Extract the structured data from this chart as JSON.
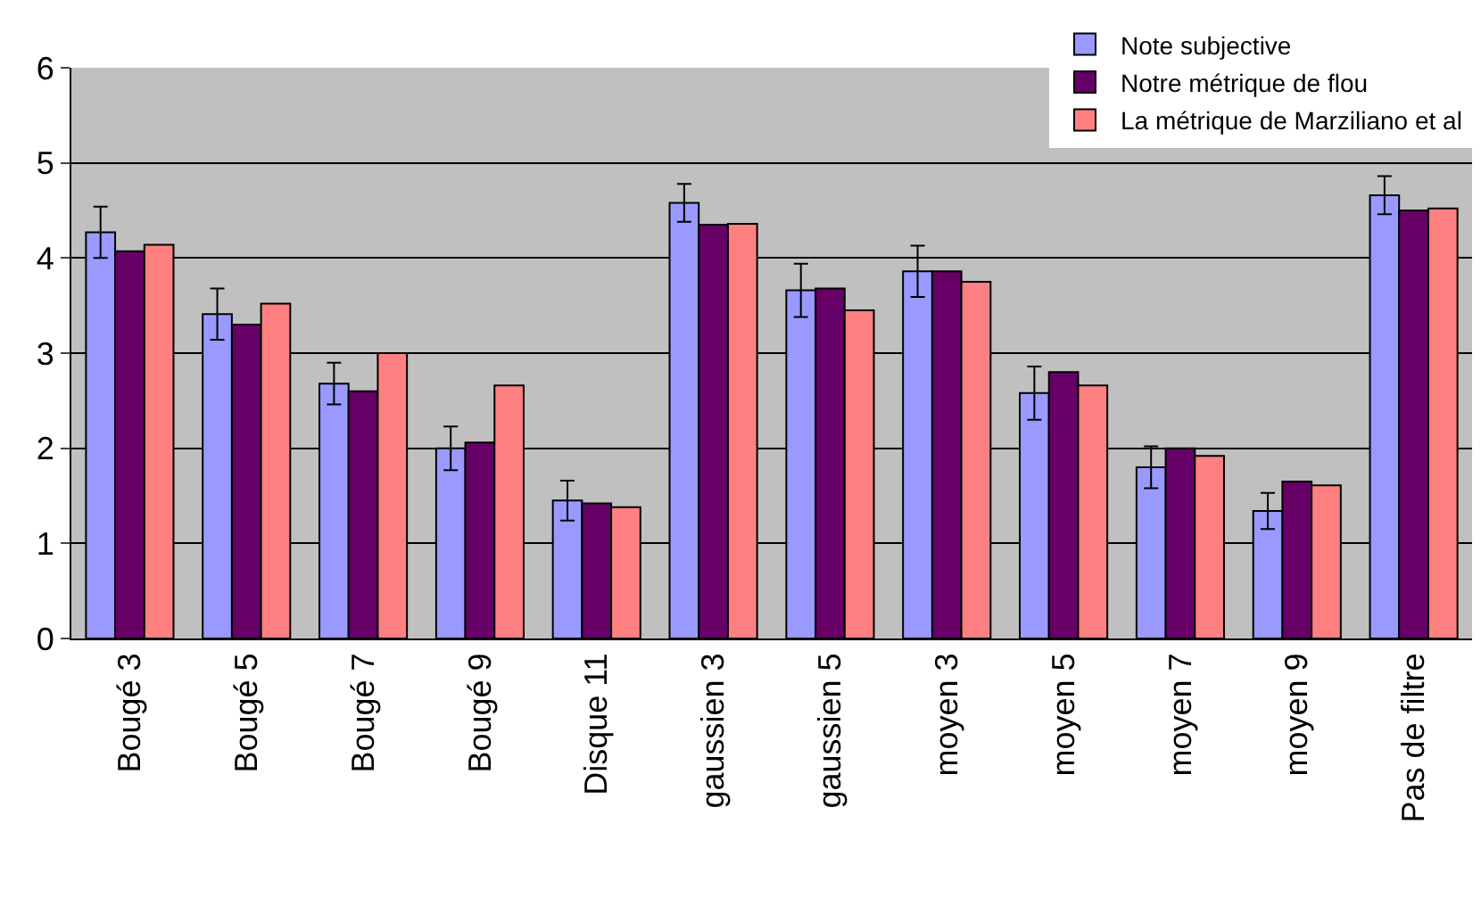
{
  "chart_data": {
    "type": "bar",
    "categories": [
      "Bougé 3",
      "Bougé 5",
      "Bougé 7",
      "Bougé 9",
      "Disque 11",
      "gaussien 3",
      "gaussien 5",
      "moyen 3",
      "moyen 5",
      "moyen 7",
      "moyen 9",
      "Pas de filtre"
    ],
    "series": [
      {
        "name": "Note subjective",
        "color": "#9999ff",
        "values": [
          4.27,
          3.41,
          2.68,
          2.0,
          1.45,
          4.58,
          3.66,
          3.86,
          2.58,
          1.8,
          1.34,
          4.66
        ],
        "errors": [
          0.27,
          0.27,
          0.22,
          0.23,
          0.21,
          0.2,
          0.28,
          0.27,
          0.28,
          0.22,
          0.19,
          0.2
        ]
      },
      {
        "name": "Notre métrique de flou",
        "color": "#660066",
        "values": [
          4.07,
          3.3,
          2.6,
          2.06,
          1.42,
          4.35,
          3.68,
          3.86,
          2.8,
          2.0,
          1.65,
          4.5
        ]
      },
      {
        "name": "La métrique de Marziliano et al",
        "color": "#ff8080",
        "values": [
          4.14,
          3.52,
          3.0,
          2.66,
          1.38,
          4.36,
          3.45,
          3.75,
          2.66,
          1.92,
          1.61,
          4.52
        ]
      }
    ],
    "ylim": [
      0,
      6
    ],
    "yticks": [
      0,
      1,
      2,
      3,
      4,
      5,
      6
    ],
    "grid": "y",
    "legend": "top right"
  }
}
